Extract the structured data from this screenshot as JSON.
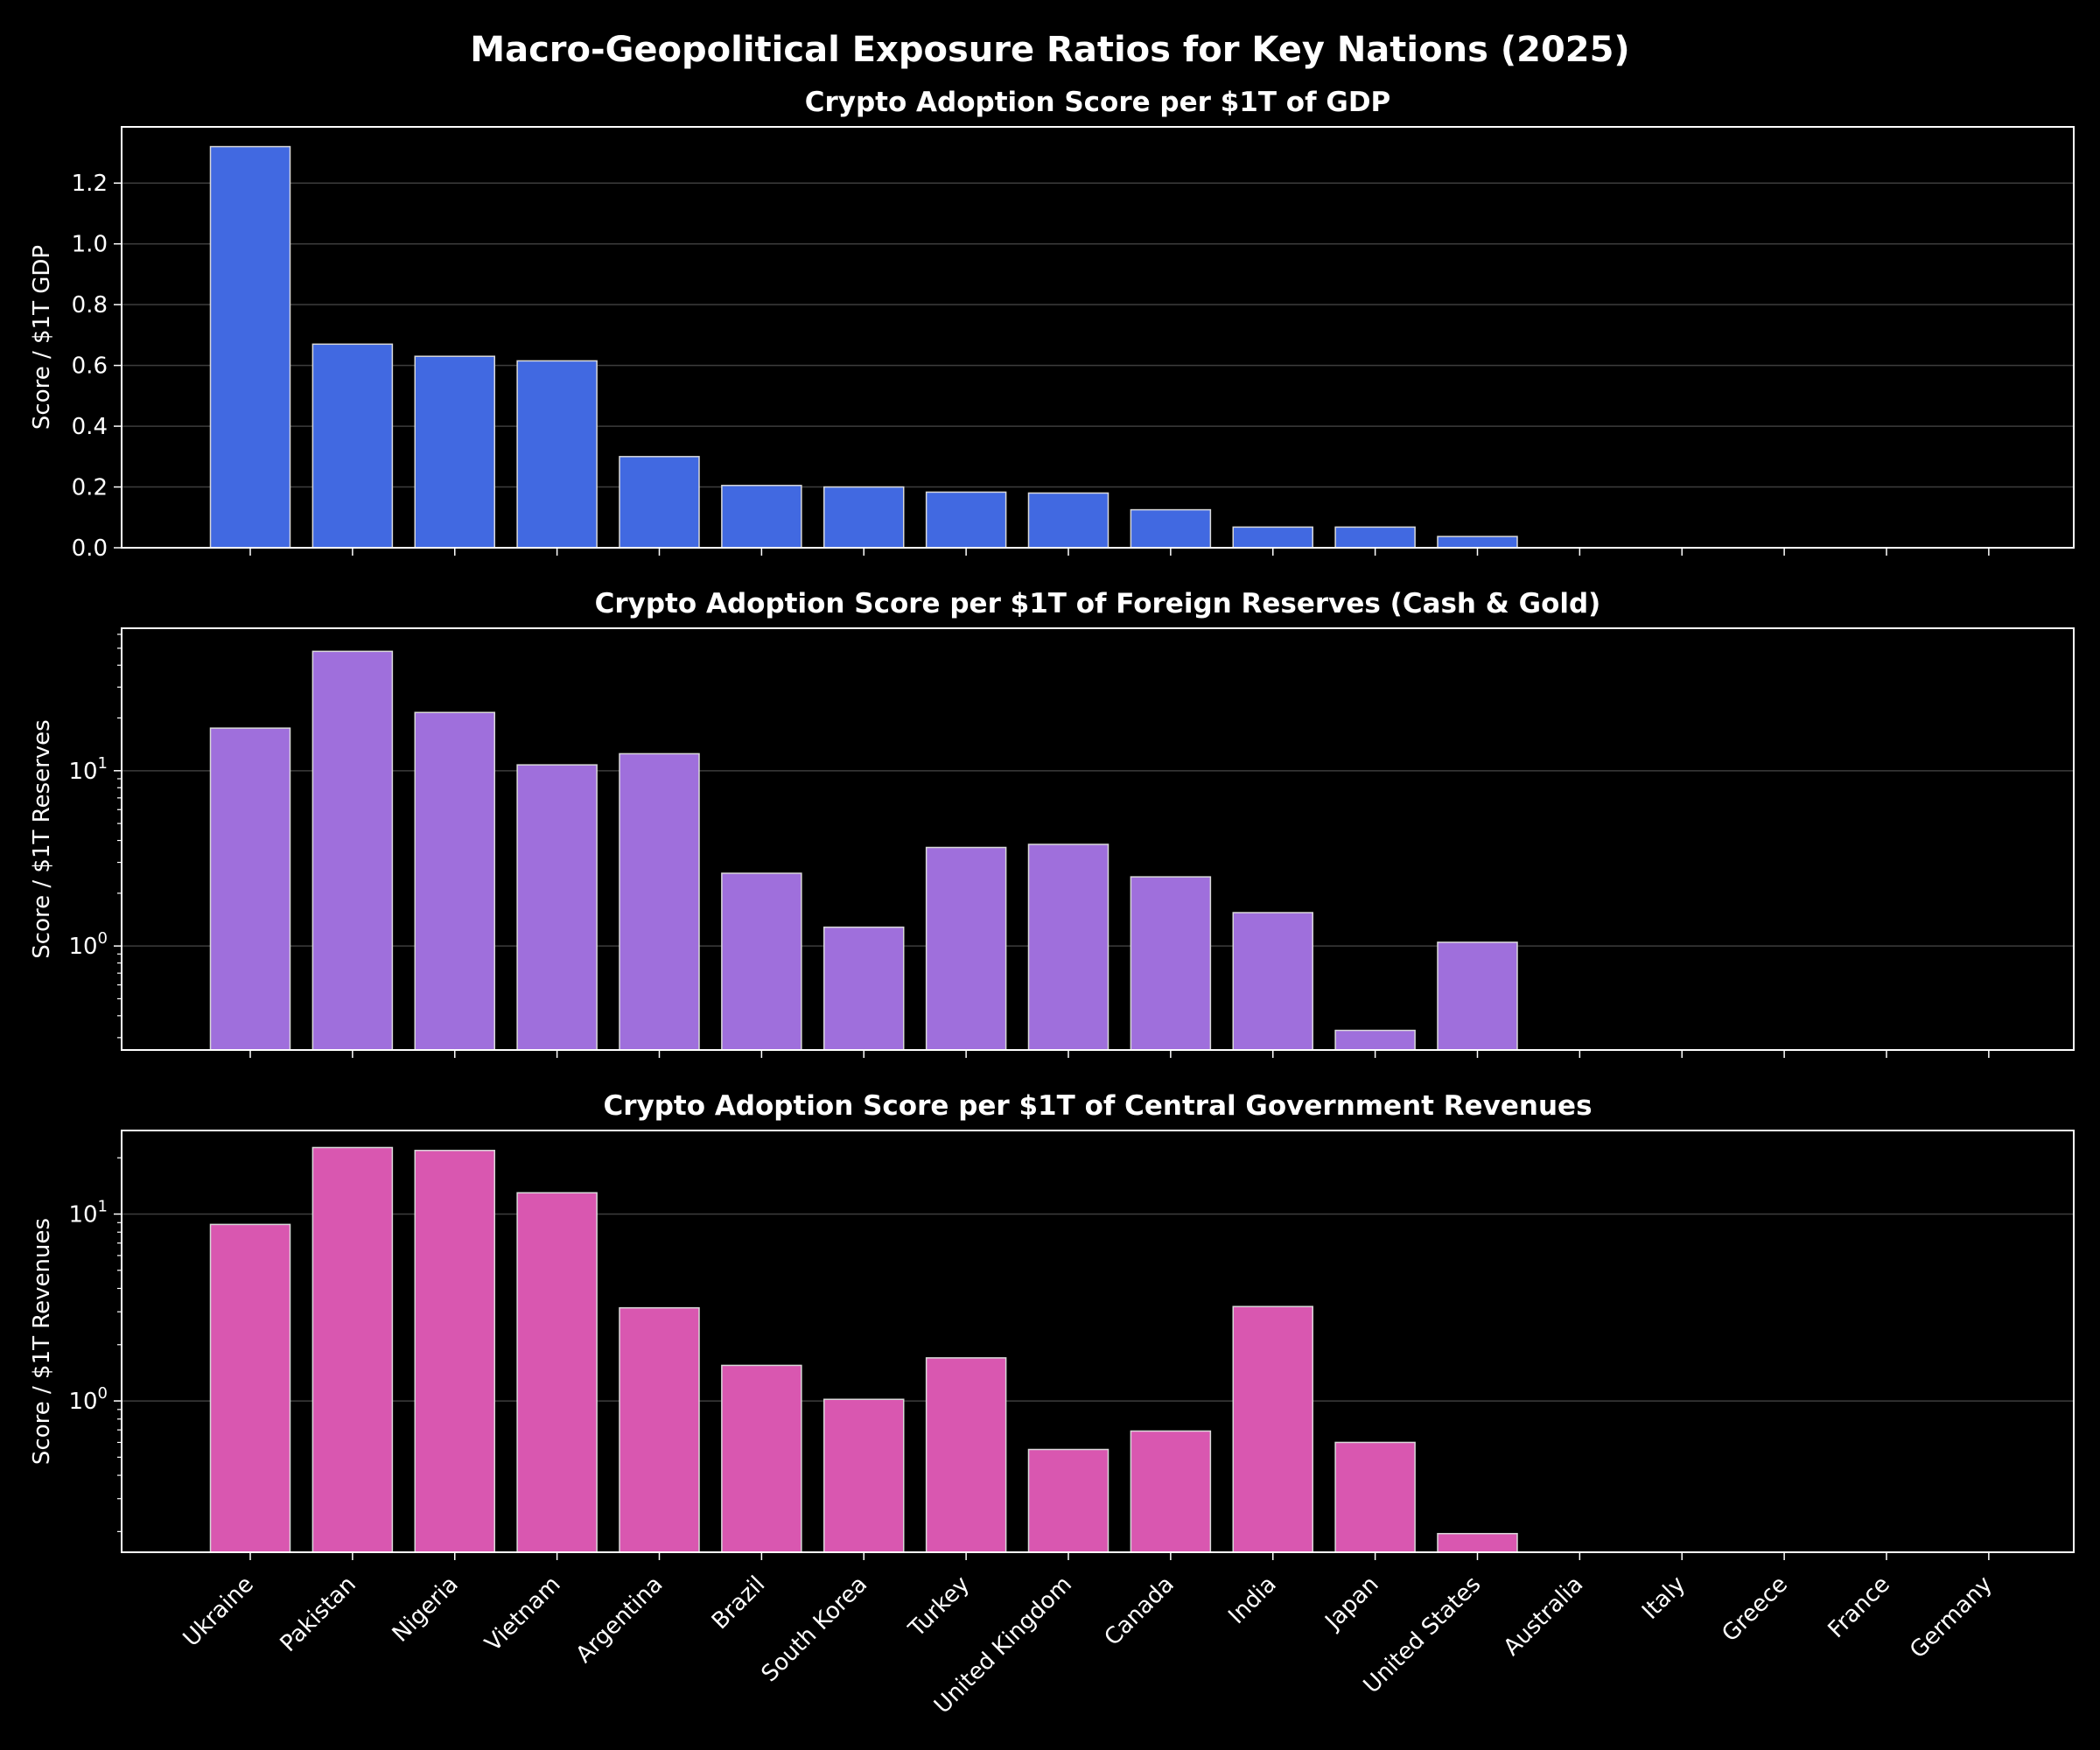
{
  "figure_title": "Macro-Geopolitical Exposure Ratios for Key Nations (2025)",
  "colors": {
    "background": "#000000",
    "text": "#ffffff",
    "grid": "#444444",
    "bar_edge": "#d9d9d9"
  },
  "chart_data": [
    {
      "type": "bar",
      "title": "Crypto Adoption Score per $1T of GDP",
      "ylabel": "Score / $1T GDP",
      "yscale": "linear",
      "ylim": [
        0,
        1.385
      ],
      "yticks": [
        0.0,
        0.2,
        0.4,
        0.6,
        0.8,
        1.0,
        1.2
      ],
      "ytick_labels": [
        "0.0",
        "0.2",
        "0.4",
        "0.6",
        "0.8",
        "1.0",
        "1.2"
      ],
      "grid": true,
      "color": "#4169e1",
      "categories": [
        "Ukraine",
        "Pakistan",
        "Nigeria",
        "Vietnam",
        "Argentina",
        "Brazil",
        "South Korea",
        "Turkey",
        "United Kingdom",
        "Canada",
        "India",
        "Japan",
        "United States",
        "Australia",
        "Italy",
        "Greece",
        "France",
        "Germany"
      ],
      "values": [
        1.32,
        0.67,
        0.63,
        0.615,
        0.3,
        0.205,
        0.2,
        0.183,
        0.18,
        0.125,
        0.068,
        0.068,
        0.037,
        0,
        0,
        0,
        0,
        0
      ]
    },
    {
      "type": "bar",
      "title": "Crypto Adoption Score per $1T of Foreign Reserves (Cash & Gold)",
      "ylabel": "Score / $1T Reserves",
      "yscale": "log",
      "ylim": [
        0.255,
        65
      ],
      "yticks": [
        1,
        10
      ],
      "ytick_labels": [
        "10^0",
        "10^1"
      ],
      "grid": true,
      "color": "#9f6fdc",
      "categories": [
        "Ukraine",
        "Pakistan",
        "Nigeria",
        "Vietnam",
        "Argentina",
        "Brazil",
        "South Korea",
        "Turkey",
        "United Kingdom",
        "Canada",
        "India",
        "Japan",
        "United States",
        "Australia",
        "Italy",
        "Greece",
        "France",
        "Germany"
      ],
      "values": [
        17.5,
        48,
        21.5,
        10.8,
        12.5,
        2.6,
        1.28,
        3.65,
        3.8,
        2.48,
        1.55,
        0.33,
        1.05,
        0,
        0,
        0,
        0,
        0
      ]
    },
    {
      "type": "bar",
      "title": "Crypto Adoption Score per $1T of Central Government Revenues",
      "ylabel": "Score / $1T Revenues",
      "yscale": "log",
      "ylim": [
        0.155,
        28
      ],
      "yticks": [
        1,
        10
      ],
      "ytick_labels": [
        "10^0",
        "10^1"
      ],
      "grid": true,
      "color": "#d957b0",
      "categories": [
        "Ukraine",
        "Pakistan",
        "Nigeria",
        "Vietnam",
        "Argentina",
        "Brazil",
        "South Korea",
        "Turkey",
        "United Kingdom",
        "Canada",
        "India",
        "Japan",
        "United States",
        "Australia",
        "Italy",
        "Greece",
        "France",
        "Germany"
      ],
      "values": [
        8.8,
        22.7,
        21.9,
        13.0,
        3.15,
        1.55,
        1.02,
        1.7,
        0.55,
        0.69,
        3.2,
        0.6,
        0.195,
        0,
        0,
        0,
        0,
        0
      ]
    }
  ]
}
